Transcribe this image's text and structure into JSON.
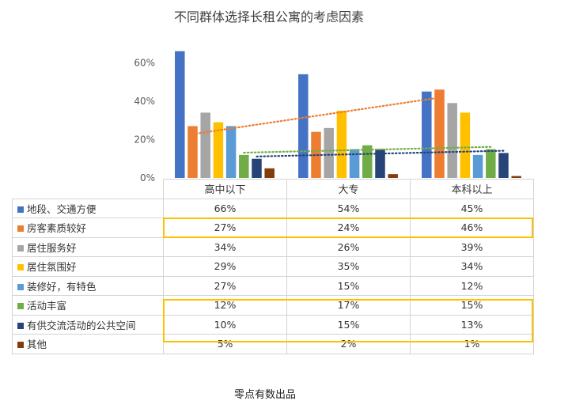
{
  "page_title": "不同群体选择长租公寓的考虑因素",
  "caption": "零点有数出品",
  "chart_data": {
    "type": "bar",
    "title": "不同群体选择长租公寓的考虑因素",
    "categories": [
      "高中以下",
      "大专",
      "本科以上"
    ],
    "ylim": [
      0,
      70
    ],
    "yticks": [
      "0%",
      "20%",
      "40%",
      "60%"
    ],
    "ytick_values": [
      0,
      20,
      40,
      60
    ],
    "grid": false,
    "legend": "data table below chart",
    "trendlines": "dotted linear trendlines for 房客素质较好, 活动丰富, 有供交流活动的公共空间",
    "series": [
      {
        "name": "地段、交通方便",
        "values": [
          66,
          54,
          45
        ],
        "labels": [
          "66%",
          "54%",
          "45%"
        ],
        "color": "#4472c4"
      },
      {
        "name": "房客素质较好",
        "values": [
          27,
          24,
          46
        ],
        "labels": [
          "27%",
          "24%",
          "46%"
        ],
        "color": "#ed7d31",
        "trendline": true
      },
      {
        "name": "居住服务好",
        "values": [
          34,
          26,
          39
        ],
        "labels": [
          "34%",
          "26%",
          "39%"
        ],
        "color": "#a5a5a5"
      },
      {
        "name": "居住氛围好",
        "values": [
          29,
          35,
          34
        ],
        "labels": [
          "29%",
          "35%",
          "34%"
        ],
        "color": "#ffc000"
      },
      {
        "name": "装修好，有特色",
        "values": [
          27,
          15,
          12
        ],
        "labels": [
          "27%",
          "15%",
          "12%"
        ],
        "color": "#5b9bd5"
      },
      {
        "name": "活动丰富",
        "values": [
          12,
          17,
          15
        ],
        "labels": [
          "12%",
          "17%",
          "15%"
        ],
        "color": "#70ad47",
        "trendline": true
      },
      {
        "name": "有供交流活动的公共空间",
        "values": [
          10,
          15,
          13
        ],
        "labels": [
          "10%",
          "15%",
          "13%"
        ],
        "color": "#264478",
        "trendline": true
      },
      {
        "name": "其他",
        "values": [
          5,
          2,
          1
        ],
        "labels": [
          "5%",
          "2%",
          "1%"
        ],
        "color": "#843c0c"
      }
    ],
    "highlighted_rows": [
      "房客素质较好",
      "活动丰富",
      "有供交流活动的公共空间"
    ],
    "highlight_color": "#ffc000"
  }
}
